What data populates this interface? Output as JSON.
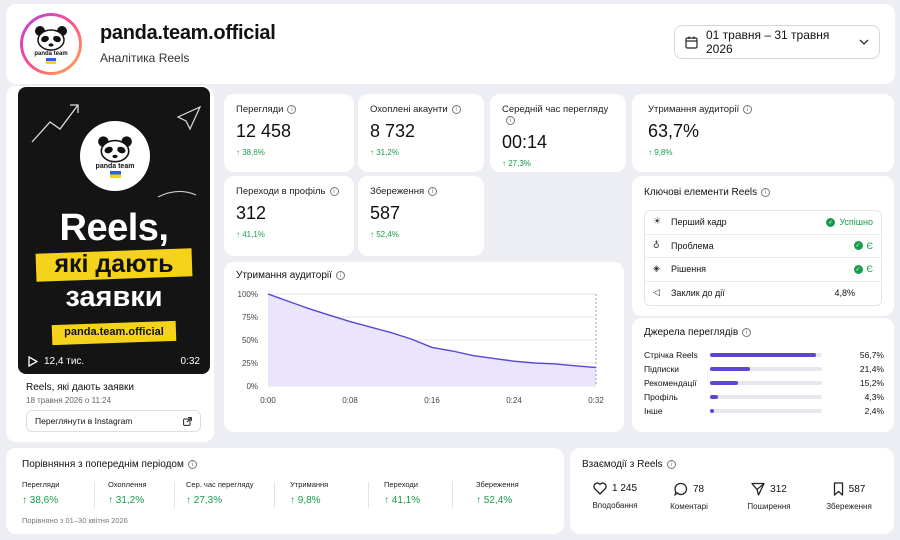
{
  "header": {
    "account": "panda.team.official",
    "subtitle": "Аналітика Reels",
    "logo_text": "panda team",
    "date_range": "01 травня – 31 травня 2026"
  },
  "reel": {
    "thumb_line1": "Reels,",
    "thumb_line2": "які дають",
    "thumb_line3": "заявки",
    "thumb_handle": "panda.team.official",
    "thumb_logo_text": "panda team",
    "plays": "12,4 тис.",
    "duration": "0:32",
    "title": "Reels, які дають заявки",
    "date": "18 травня 2026 о 11:24",
    "instagram_button": "Переглянути в Instagram"
  },
  "metrics": [
    {
      "label": "Перегляди",
      "value": "12 458",
      "change": "38,6%"
    },
    {
      "label": "Охоплені акаунти",
      "value": "8 732",
      "change": "31,2%"
    },
    {
      "label": "Середній час перегляду",
      "value": "00:14",
      "change": "27,3%"
    },
    {
      "label": "Утримання аудиторії",
      "value": "63,7%",
      "change": "9,8%"
    },
    {
      "label": "Переходи в профіль",
      "value": "312",
      "change": "41,1%"
    },
    {
      "label": "Збереження",
      "value": "587",
      "change": "52,4%"
    }
  ],
  "retention": {
    "title": "Утримання аудиторії",
    "y_ticks": [
      "100%",
      "75%",
      "50%",
      "25%",
      "0%"
    ],
    "x_ticks": [
      "0:00",
      "0:08",
      "0:16",
      "0:24",
      "0:32"
    ]
  },
  "chart_data": {
    "type": "area",
    "title": "Утримання аудиторії",
    "xlabel": "",
    "ylabel": "",
    "x_unit": "seconds",
    "xlim": [
      0,
      32
    ],
    "ylim": [
      0,
      100
    ],
    "x": [
      0,
      1,
      2,
      3,
      4,
      6,
      8,
      10,
      12,
      14,
      16,
      18,
      20,
      22,
      24,
      26,
      28,
      30,
      32
    ],
    "values": [
      100,
      96,
      92,
      88,
      84,
      77,
      70,
      64,
      58,
      51,
      42,
      38,
      33,
      30,
      27,
      25,
      24,
      22,
      20
    ],
    "grid": true,
    "colors": {
      "line": "#5b46d6",
      "fill": "#e5defb"
    }
  },
  "key_elements": {
    "title": "Ключові елементи Reels",
    "rows": [
      {
        "icon": "sun-icon",
        "glyph": "☀",
        "label": "Перший кадр",
        "status": "Успішно",
        "check": true
      },
      {
        "icon": "bulb-icon",
        "glyph": "◌",
        "label": "Проблема",
        "status": "Є",
        "check": true
      },
      {
        "icon": "diamond-icon",
        "glyph": "◇",
        "label": "Рішення",
        "status": "Є",
        "check": true
      },
      {
        "icon": "megaphone-icon",
        "glyph": "◁",
        "label": "Заклик до дії",
        "status": "4,8%",
        "check": false
      }
    ]
  },
  "sources": {
    "title": "Джерела переглядів",
    "rows": [
      {
        "label": "Стрічка Reels",
        "pct": "56,7%",
        "value": 56.7
      },
      {
        "label": "Підписки",
        "pct": "21,4%",
        "value": 21.4
      },
      {
        "label": "Рекомендації",
        "pct": "15,2%",
        "value": 15.2
      },
      {
        "label": "Профіль",
        "pct": "4,3%",
        "value": 4.3
      },
      {
        "label": "Інше",
        "pct": "2,4%",
        "value": 2.4
      }
    ]
  },
  "comparison": {
    "title": "Порівняння з попереднім періодом",
    "cols": [
      {
        "label": "Перегляди",
        "value": "38,6%"
      },
      {
        "label": "Охоплення",
        "value": "31,2%"
      },
      {
        "label": "Сер. час перегляду",
        "value": "27,3%"
      },
      {
        "label": "Утримання",
        "value": "9,8%"
      },
      {
        "label": "Переходи",
        "value": "41,1%"
      },
      {
        "label": "Збереження",
        "value": "52,4%"
      }
    ],
    "note": "Порівняно з 01–30 квітня 2026"
  },
  "interactions": {
    "title": "Взаємодії з Reels",
    "cols": [
      {
        "icon": "heart-icon",
        "value": "1 245",
        "label": "Вподобання"
      },
      {
        "icon": "comment-icon",
        "value": "78",
        "label": "Коментарі"
      },
      {
        "icon": "send-icon",
        "value": "312",
        "label": "Поширення"
      },
      {
        "icon": "bookmark-icon",
        "value": "587",
        "label": "Збереження"
      }
    ]
  },
  "colors": {
    "accent": "#5b46d6",
    "positive": "#1a9b4b",
    "thumb_yellow": "#f5d31a"
  }
}
